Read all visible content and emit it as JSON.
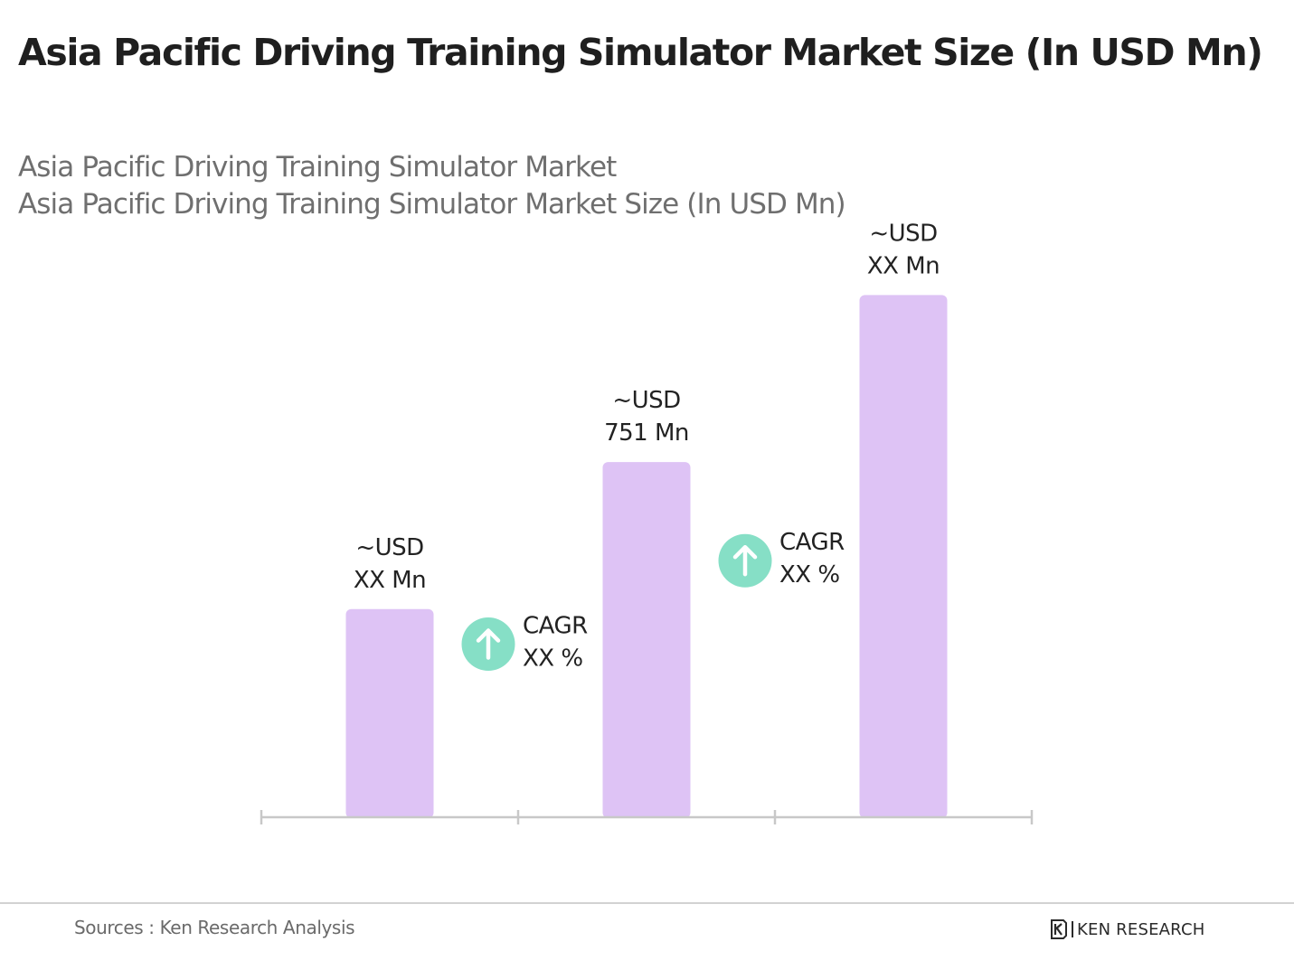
{
  "title": "Asia Pacific Driving Training Simulator Market Size (In USD Mn)",
  "subtitle_lines": [
    "Asia Pacific Driving Training Simulator Market",
    "Asia Pacific Driving Training Simulator Market Size (In USD Mn)"
  ],
  "colors": {
    "bar": "#dec3f5",
    "axis": "#c8c8c8",
    "cagr_icon": "#86dfc6",
    "label": "#222222"
  },
  "chart_data": {
    "type": "bar",
    "categories": [
      "",
      "",
      ""
    ],
    "values": [
      440,
      751,
      1104
    ],
    "ylim": [
      0,
      1250
    ],
    "bar_labels": [
      [
        "~USD",
        "XX Mn"
      ],
      [
        "~USD",
        "751 Mn"
      ],
      [
        "~USD",
        "XX Mn"
      ]
    ],
    "annotations": [
      {
        "between": [
          0,
          1
        ],
        "icon": "arrow-up-icon",
        "lines": [
          "CAGR",
          "XX %"
        ]
      },
      {
        "between": [
          1,
          2
        ],
        "icon": "arrow-up-icon",
        "lines": [
          "CAGR",
          "XX %"
        ]
      }
    ],
    "grid": false,
    "legend": "none"
  },
  "footer": {
    "source": "Sources : Ken Research Analysis",
    "brand_text": "KEN RESEARCH"
  }
}
